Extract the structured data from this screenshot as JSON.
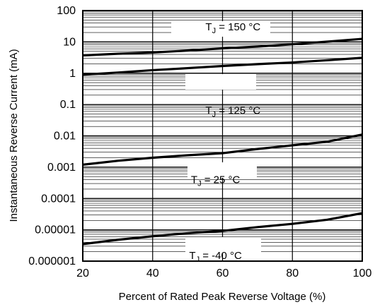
{
  "chart_data": {
    "type": "line",
    "title": "",
    "xlabel": "Percent of Rated Peak Reverse Voltage (%)",
    "ylabel": "Instantaneous Reverse Current (mA)",
    "xlim": [
      20,
      100
    ],
    "ylim": [
      1e-06,
      100
    ],
    "yscale": "log",
    "grid": true,
    "x_ticks": [
      20,
      40,
      60,
      80,
      100
    ],
    "x_tick_labels": [
      "20",
      "40",
      "60",
      "80",
      "100"
    ],
    "y_ticks": [
      1e-06,
      1e-05,
      0.0001,
      0.001,
      0.01,
      0.1,
      1,
      10,
      100
    ],
    "y_tick_labels": [
      "0.000001",
      "0.00001",
      "0.0001",
      "0.001",
      "0.01",
      "0.1",
      "1",
      "10",
      "100"
    ],
    "series": [
      {
        "label": {
          "main": "T",
          "sub": "J",
          "rest": " = 150 °C"
        },
        "x": [
          20,
          30,
          40,
          50,
          60,
          70,
          80,
          90,
          100
        ],
        "y": [
          3.7,
          4.2,
          4.6,
          5.3,
          6.2,
          7.1,
          8.4,
          10.2,
          12.5
        ]
      },
      {
        "label": {
          "main": "T",
          "sub": "J",
          "rest": " = 125 °C"
        },
        "x": [
          20,
          30,
          40,
          50,
          60,
          70,
          80,
          90,
          100
        ],
        "y": [
          0.9,
          1.05,
          1.25,
          1.45,
          1.7,
          1.95,
          2.2,
          2.6,
          3.1
        ]
      },
      {
        "label": {
          "main": "T",
          "sub": "J",
          "rest": " = 25 °C"
        },
        "x": [
          20,
          30,
          40,
          50,
          60,
          70,
          80,
          90,
          100
        ],
        "y": [
          0.0012,
          0.0016,
          0.002,
          0.0024,
          0.0028,
          0.0038,
          0.005,
          0.0065,
          0.011
        ]
      },
      {
        "label": {
          "main": "T",
          "sub": "J",
          "rest": " = -40 °C"
        },
        "x": [
          20,
          30,
          40,
          50,
          60,
          70,
          80,
          90,
          100
        ],
        "y": [
          3.5e-06,
          4.8e-06,
          6.2e-06,
          7.8e-06,
          9.2e-06,
          1.22e-05,
          1.55e-05,
          2.1e-05,
          3.4e-05
        ]
      }
    ]
  }
}
